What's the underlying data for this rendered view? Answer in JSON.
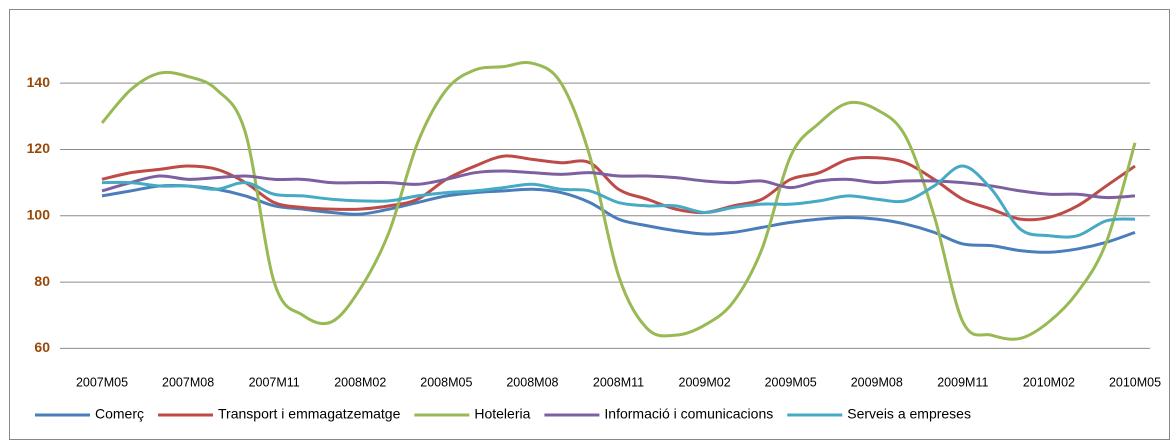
{
  "chart_data": {
    "type": "line",
    "categories": [
      "2007M05",
      null,
      null,
      "2007M08",
      null,
      null,
      "2007M11",
      null,
      null,
      "2008M02",
      null,
      null,
      "2008M05",
      null,
      null,
      "2008M08",
      null,
      null,
      "2008M11",
      null,
      null,
      "2009M02",
      null,
      null,
      "2009M05",
      null,
      null,
      "2009M08",
      null,
      null,
      "2009M11",
      null,
      null,
      "2010M02",
      null,
      null,
      "2010M05"
    ],
    "ylim": [
      55,
      150
    ],
    "yticks": [
      60,
      80,
      100,
      120,
      140
    ],
    "grid": true,
    "legend": "bottom",
    "series": [
      {
        "name": "Comerç",
        "color": "#4a7ebb",
        "values": [
          106,
          107.5,
          109,
          109,
          108,
          106,
          103,
          102,
          101,
          100.5,
          102,
          104,
          106,
          107,
          107.5,
          108,
          107,
          104,
          99,
          97,
          95.5,
          94.5,
          95,
          96.5,
          98,
          99,
          99.5,
          99,
          97.5,
          95,
          91.5,
          91,
          89.5,
          89,
          90,
          92,
          95
        ]
      },
      {
        "name": "Transport i emmagatzematge",
        "color": "#be4b48",
        "values": [
          111,
          113,
          114,
          115,
          114,
          110,
          104,
          102.5,
          102,
          102,
          103,
          105,
          111,
          115,
          118,
          117,
          116,
          116,
          108,
          105,
          102,
          101,
          103,
          105,
          111,
          113,
          117,
          117.5,
          116,
          111,
          105,
          102,
          99,
          99.5,
          103,
          109,
          115
        ]
      },
      {
        "name": "Hoteleria",
        "color": "#98b954",
        "values": [
          128,
          138,
          143,
          142,
          138,
          125,
          80,
          70,
          68,
          78,
          95,
          122,
          138,
          144,
          145,
          146,
          140,
          118,
          82,
          66,
          64,
          67,
          74,
          90,
          118,
          128,
          134,
          132,
          124,
          100,
          68,
          64,
          63,
          68,
          77,
          92,
          122
        ]
      },
      {
        "name": "Informació i comunicacions",
        "color": "#7d60a0",
        "values": [
          107.5,
          110,
          112,
          111,
          111.5,
          112,
          111,
          111,
          110,
          110,
          110,
          109.5,
          111,
          113,
          113.5,
          113,
          112.5,
          113,
          112,
          112,
          111.5,
          110.5,
          110,
          110.5,
          108.5,
          110.5,
          111,
          110,
          110.5,
          110.5,
          110,
          109,
          107.5,
          106.5,
          106.5,
          105.5,
          106
        ]
      },
      {
        "name": "Serveis a empreses",
        "color": "#46aac5",
        "values": [
          110,
          110,
          109,
          109,
          108,
          110,
          106.5,
          106,
          105,
          104.5,
          104.5,
          106,
          107,
          107.5,
          108.5,
          109.5,
          108,
          107.5,
          104,
          103,
          103,
          101,
          102.5,
          103.5,
          103.5,
          104.5,
          106,
          105,
          104.5,
          109,
          115,
          108,
          96,
          94,
          94,
          98.5,
          99
        ]
      }
    ]
  }
}
